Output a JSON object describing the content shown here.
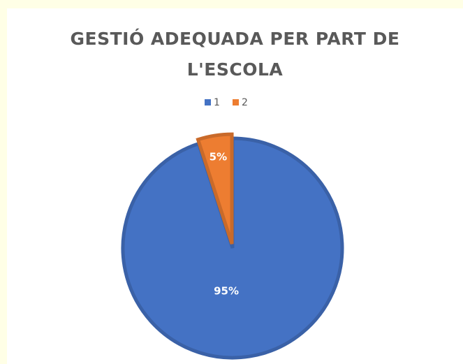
{
  "chart_data": {
    "type": "pie",
    "title": "GESTIÓ ADEQUADA PER PART DE L'ESCOLA",
    "categories": [
      "1",
      "2"
    ],
    "values": [
      95,
      5
    ],
    "value_labels": [
      "95%",
      "5%"
    ],
    "colors": [
      "#4472c4",
      "#ed7d31"
    ],
    "legend": "top"
  }
}
